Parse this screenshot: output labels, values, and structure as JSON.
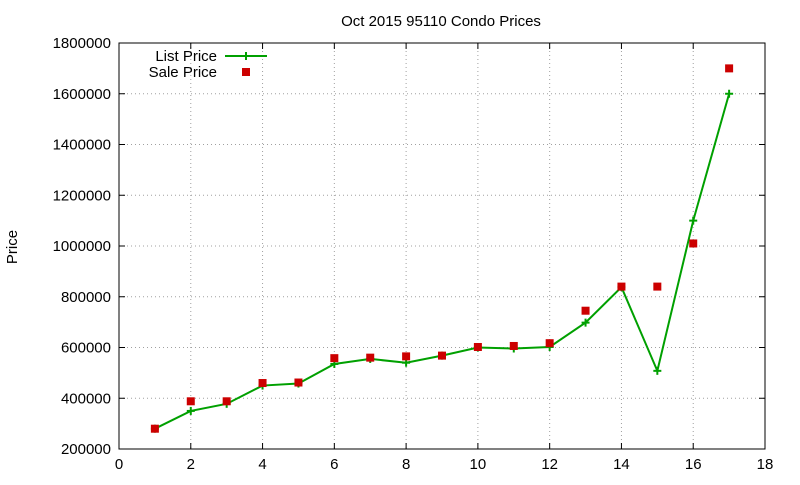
{
  "chart_data": {
    "type": "line",
    "title": "Oct 2015 95110 Condo Prices",
    "xlabel": "",
    "ylabel": "Price",
    "xlim": [
      0,
      18
    ],
    "ylim": [
      200000,
      1800000
    ],
    "x_ticks": [
      0,
      2,
      4,
      6,
      8,
      10,
      12,
      14,
      16,
      18
    ],
    "y_ticks": [
      200000,
      400000,
      600000,
      800000,
      1000000,
      1200000,
      1400000,
      1600000,
      1800000
    ],
    "grid": true,
    "legend_position": "top-left",
    "series": [
      {
        "name": "List Price",
        "style": "line-with-plus-markers",
        "color": "#00a000",
        "points": [
          {
            "x": 1,
            "y": 280000
          },
          {
            "x": 2,
            "y": 350000
          },
          {
            "x": 3,
            "y": 378000
          },
          {
            "x": 4,
            "y": 450000
          },
          {
            "x": 5,
            "y": 458000
          },
          {
            "x": 6,
            "y": 535000
          },
          {
            "x": 7,
            "y": 555000
          },
          {
            "x": 8,
            "y": 540000
          },
          {
            "x": 9,
            "y": 568000
          },
          {
            "x": 10,
            "y": 600000
          },
          {
            "x": 11,
            "y": 596000
          },
          {
            "x": 12,
            "y": 602000
          },
          {
            "x": 13,
            "y": 698000
          },
          {
            "x": 14,
            "y": 838000
          },
          {
            "x": 15,
            "y": 508000
          },
          {
            "x": 16,
            "y": 1100000
          },
          {
            "x": 17,
            "y": 1600000
          }
        ]
      },
      {
        "name": "Sale Price",
        "style": "square-markers",
        "color": "#cc0000",
        "points": [
          {
            "x": 1,
            "y": 280000
          },
          {
            "x": 2,
            "y": 388000
          },
          {
            "x": 3,
            "y": 388000
          },
          {
            "x": 4,
            "y": 460000
          },
          {
            "x": 5,
            "y": 462000
          },
          {
            "x": 6,
            "y": 558000
          },
          {
            "x": 7,
            "y": 560000
          },
          {
            "x": 8,
            "y": 565000
          },
          {
            "x": 9,
            "y": 568000
          },
          {
            "x": 10,
            "y": 602000
          },
          {
            "x": 11,
            "y": 606000
          },
          {
            "x": 12,
            "y": 617000
          },
          {
            "x": 13,
            "y": 745000
          },
          {
            "x": 14,
            "y": 840000
          },
          {
            "x": 15,
            "y": 840000
          },
          {
            "x": 16,
            "y": 1010000
          },
          {
            "x": 17,
            "y": 1700000
          }
        ]
      }
    ]
  }
}
